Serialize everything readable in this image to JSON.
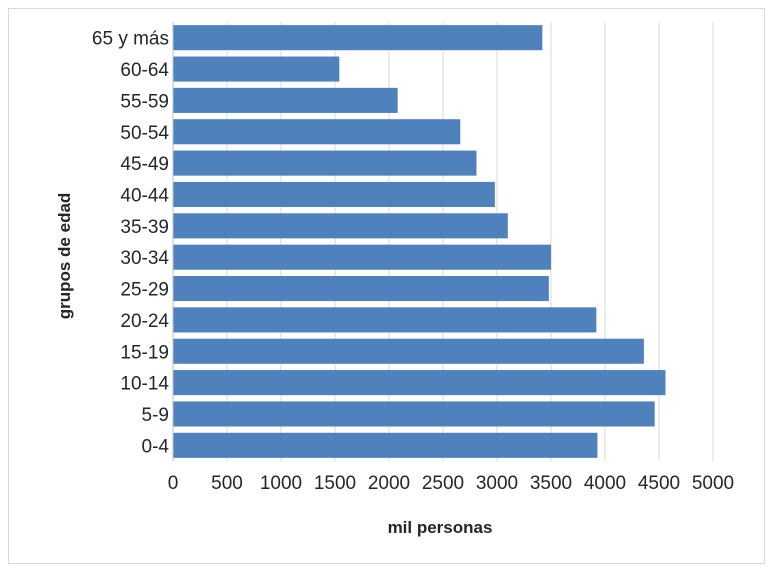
{
  "chart_data": {
    "type": "bar",
    "orientation": "horizontal",
    "categories": [
      "65 y más",
      "60-64",
      "55-59",
      "50-54",
      "45-49",
      "40-44",
      "35-39",
      "30-34",
      "25-29",
      "20-24",
      "15-19",
      "10-14",
      "5-9",
      "0-4"
    ],
    "values": [
      3420,
      1540,
      2080,
      2660,
      2810,
      2980,
      3100,
      3500,
      3480,
      3920,
      4360,
      4560,
      4460,
      3930
    ],
    "xlim": [
      0,
      5000
    ],
    "xticks": [
      0,
      500,
      1000,
      1500,
      2000,
      2500,
      3000,
      3500,
      4000,
      4500,
      5000
    ],
    "xticks_labels": [
      "0",
      "500",
      "1000",
      "1500",
      "2000",
      "2500",
      "3000",
      "3500",
      "4000",
      "4500",
      "5000"
    ],
    "xlabel": "mil personas",
    "ylabel": "grupos de edad",
    "grid": "vertical",
    "legend": "none",
    "colors": {
      "bar": "#4f81bd",
      "grid": "#d9d9d9",
      "text": "#262626"
    }
  }
}
